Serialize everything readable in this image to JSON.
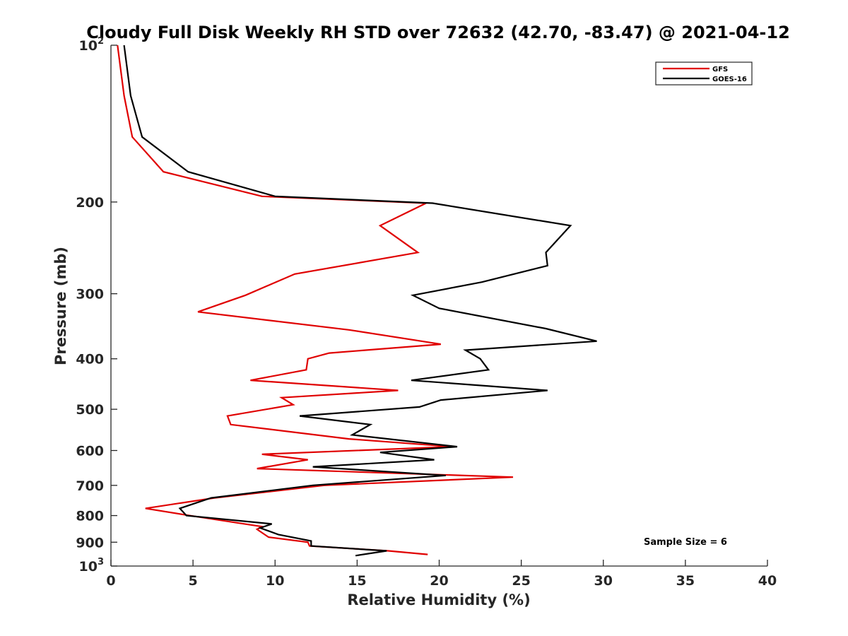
{
  "chart_data": {
    "type": "line",
    "title": "Cloudy Full Disk Weekly RH STD over 72632 (42.70, -83.47) @ 2021-04-12",
    "xlabel": "Relative Humidity (%)",
    "ylabel": "Pressure (mb)",
    "xlim": [
      0,
      40
    ],
    "ylim": [
      100,
      1000
    ],
    "y_scale": "log",
    "y_reversed": true,
    "grid": false,
    "legend_position": "top-right",
    "x_ticks": [
      "0",
      "5",
      "10",
      "15",
      "20",
      "25",
      "30",
      "35",
      "40"
    ],
    "x_tick_values": [
      0,
      5,
      10,
      15,
      20,
      25,
      30,
      35,
      40
    ],
    "y_ticks": [
      {
        "value": 100,
        "base": "10",
        "exp": "2",
        "text": ""
      },
      {
        "value": 200,
        "base": "",
        "exp": "",
        "text": "200"
      },
      {
        "value": 300,
        "base": "",
        "exp": "",
        "text": "300"
      },
      {
        "value": 400,
        "base": "",
        "exp": "",
        "text": "400"
      },
      {
        "value": 500,
        "base": "",
        "exp": "",
        "text": "500"
      },
      {
        "value": 600,
        "base": "",
        "exp": "",
        "text": "600"
      },
      {
        "value": 700,
        "base": "",
        "exp": "",
        "text": "700"
      },
      {
        "value": 800,
        "base": "",
        "exp": "",
        "text": "800"
      },
      {
        "value": 900,
        "base": "",
        "exp": "",
        "text": "900"
      },
      {
        "value": 1000,
        "base": "10",
        "exp": "3",
        "text": ""
      }
    ],
    "series": [
      {
        "name": "GFS",
        "color": "#e00000",
        "points": [
          [
            0.4,
            100
          ],
          [
            0.8,
            125
          ],
          [
            1.3,
            150
          ],
          [
            3.2,
            175
          ],
          [
            9.2,
            195
          ],
          [
            19.2,
            201
          ],
          [
            16.4,
            222
          ],
          [
            18.7,
            250
          ],
          [
            11.2,
            275
          ],
          [
            9.5,
            290
          ],
          [
            8.2,
            302
          ],
          [
            5.3,
            325
          ],
          [
            14.5,
            352
          ],
          [
            20.1,
            375
          ],
          [
            13.3,
            390
          ],
          [
            12.0,
            400
          ],
          [
            11.9,
            420
          ],
          [
            8.5,
            440
          ],
          [
            17.5,
            460
          ],
          [
            10.4,
            475
          ],
          [
            11.1,
            490
          ],
          [
            7.1,
            515
          ],
          [
            7.3,
            535
          ],
          [
            14.5,
            570
          ],
          [
            20.8,
            590
          ],
          [
            9.2,
            610
          ],
          [
            12.0,
            625
          ],
          [
            8.9,
            650
          ],
          [
            24.5,
            675
          ],
          [
            13.0,
            700
          ],
          [
            6.3,
            740
          ],
          [
            2.1,
            775
          ],
          [
            4.8,
            800
          ],
          [
            9.2,
            840
          ],
          [
            8.9,
            850
          ],
          [
            9.6,
            880
          ],
          [
            12.0,
            900
          ],
          [
            12.1,
            915
          ],
          [
            16.9,
            935
          ],
          [
            19.3,
            950
          ]
        ]
      },
      {
        "name": "GOES-16",
        "color": "#000000",
        "points": [
          [
            0.8,
            100
          ],
          [
            1.2,
            125
          ],
          [
            1.9,
            150
          ],
          [
            4.7,
            175
          ],
          [
            10.0,
            195
          ],
          [
            19.6,
            201
          ],
          [
            28.0,
            222
          ],
          [
            26.5,
            250
          ],
          [
            26.6,
            265
          ],
          [
            22.6,
            285
          ],
          [
            18.4,
            302
          ],
          [
            20.0,
            320
          ],
          [
            26.5,
            350
          ],
          [
            29.6,
            370
          ],
          [
            21.6,
            385
          ],
          [
            22.5,
            400
          ],
          [
            23.0,
            420
          ],
          [
            18.3,
            440
          ],
          [
            26.6,
            460
          ],
          [
            20.1,
            480
          ],
          [
            18.8,
            495
          ],
          [
            11.5,
            515
          ],
          [
            15.8,
            535
          ],
          [
            14.7,
            560
          ],
          [
            21.1,
            590
          ],
          [
            16.4,
            605
          ],
          [
            19.7,
            625
          ],
          [
            12.3,
            645
          ],
          [
            20.4,
            670
          ],
          [
            12.3,
            700
          ],
          [
            6.1,
            740
          ],
          [
            4.2,
            775
          ],
          [
            4.6,
            800
          ],
          [
            9.8,
            830
          ],
          [
            9.1,
            845
          ],
          [
            10.2,
            870
          ],
          [
            12.2,
            895
          ],
          [
            12.2,
            915
          ],
          [
            16.8,
            935
          ],
          [
            14.9,
            955
          ]
        ]
      }
    ],
    "annotation": "Sample Size = 6"
  }
}
